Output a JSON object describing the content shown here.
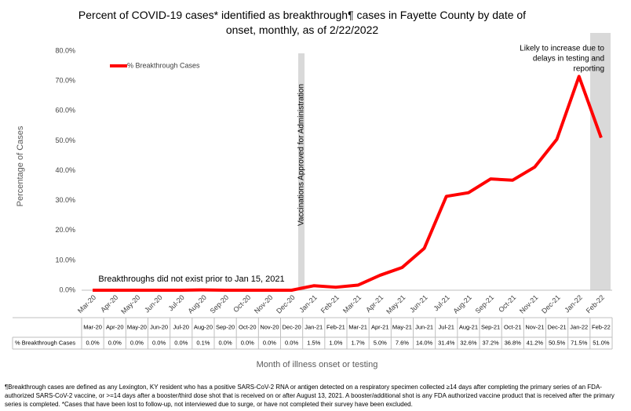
{
  "chart_data": {
    "type": "line",
    "title": "Percent of COVID-19 cases* identified as breakthrough¶ cases in Fayette County by date of onset, monthly, as of 2/22/2022",
    "x_label": "Month of illness onset or testing",
    "y_label": "Percentage of Cases",
    "categories": [
      "Mar-20",
      "Apr-20",
      "May-20",
      "Jun-20",
      "Jul-20",
      "Aug-20",
      "Sep-20",
      "Oct-20",
      "Nov-20",
      "Dec-20",
      "Jan-21",
      "Feb-21",
      "Mar-21",
      "Apr-21",
      "May-21",
      "Jun-21",
      "Jul-21",
      "Aug-21",
      "Sep-21",
      "Oct-21",
      "Nov-21",
      "Dec-21",
      "Jan-22",
      "Feb-22"
    ],
    "series": [
      {
        "name": "% Breakthrough Cases",
        "color": "#ff0000",
        "values": [
          0,
          0,
          0,
          0,
          0,
          0.1,
          0,
          0,
          0,
          0,
          1.5,
          1.0,
          1.7,
          5.0,
          7.6,
          14.0,
          31.4,
          32.6,
          37.2,
          36.8,
          41.2,
          50.5,
          71.5,
          51.0
        ],
        "value_labels": [
          "0.0%",
          "0.0%",
          "0.0%",
          "0.0%",
          "0.0%",
          "0.1%",
          "0.0%",
          "0.0%",
          "0.0%",
          "0.0%",
          "1.5%",
          "1.0%",
          "1.7%",
          "5.0%",
          "7.6%",
          "14.0%",
          "31.4%",
          "32.6%",
          "37.2%",
          "36.8%",
          "41.2%",
          "50.5%",
          "71.5%",
          "51.0%"
        ]
      }
    ],
    "ylim": [
      0,
      80
    ],
    "yticks": [
      {
        "value": 0,
        "label": "0.0%"
      },
      {
        "value": 10,
        "label": "10.0%"
      },
      {
        "value": 20,
        "label": "20.0%"
      },
      {
        "value": 30,
        "label": "30.0%"
      },
      {
        "value": 40,
        "label": "40.0%"
      },
      {
        "value": 50,
        "label": "50.0%"
      },
      {
        "value": 60,
        "label": "60.0%"
      },
      {
        "value": 70,
        "label": "70.0%"
      },
      {
        "value": 80,
        "label": "80.0%"
      }
    ],
    "legend": "top-left",
    "annotations": [
      "Vaccinations Approved for Administration",
      "Breakthroughs did not exist prior to Jan 15, 2021",
      [
        "Likely to increase due to",
        "delays in testing and",
        "reporting"
      ]
    ],
    "footnote": "¶Breakthrough cases are defined as any Lexington, KY resident who has a positive SARS-CoV-2 RNA or antigen detected on a respiratory specimen collected ≥14 days after completing the primary series of an FDA-authorized SARS-CoV-2 vaccine, or >=14 days after a booster/third dose shot that is received on or after August 13, 2021.  A booster/additional shot is any FDA authorized vaccine product that is received after the primary series is completed. *Cases that have been lost to follow-up, not interviewed due to surge, or have not completed their survey have been excluded."
  }
}
